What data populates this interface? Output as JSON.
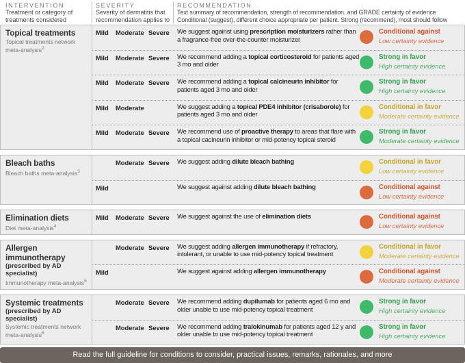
{
  "header": {
    "intervention": {
      "title": "INTERVENTION",
      "subtitle": "Treatment or category of treatments considered"
    },
    "severity": {
      "title": "SEVERITY",
      "subtitle": "Severity of dermatitis that recommendation applies to"
    },
    "recommendation": {
      "title": "RECOMMENDATION",
      "subtitle": "Text summary of recommendation, strength of recommendation, and GRADE certainty of evidence Conditional (suggest), different choice appropriate per patient. Strong (recommend), most should follow action."
    }
  },
  "groups": [
    {
      "name": "Topical treatments",
      "source": "Topical treatments network meta-analysis",
      "ref": "2",
      "rows": [
        {
          "severity": {
            "mild": "Mild",
            "moderate": "Moderate",
            "severe": "Severe"
          },
          "text": [
            "We suggest against using ",
            "prescription moisturizers",
            " rather than a fragrance-free over-the-counter moisturizer"
          ],
          "strength": "Conditional against",
          "certainty": "Low certainty evidence",
          "color": "#dc6b3e",
          "label_color": "#d4532b"
        },
        {
          "severity": {
            "mild": "Mild",
            "moderate": "Moderate",
            "severe": "Severe"
          },
          "text": [
            "We recommend adding a ",
            "topical corticosteroid",
            " for patients aged 3 mo and older"
          ],
          "strength": "Strong in favor",
          "certainty": "High certainty evidence",
          "color": "#3dba6a",
          "label_color": "#2f9f4c"
        },
        {
          "severity": {
            "mild": "Mild",
            "moderate": "Moderate",
            "severe": "Severe"
          },
          "text": [
            "We recommend adding a ",
            "topical calcineurin inhibitor",
            " for patients aged 3 mo and older"
          ],
          "strength": "Strong in favor",
          "certainty": "High certainty evidence",
          "color": "#3dba6a",
          "label_color": "#2f9f4c"
        },
        {
          "severity": {
            "mild": "Mild",
            "moderate": "Moderate"
          },
          "text": [
            "We suggest adding a ",
            "topical PDE4 inhibitor (crisaborole)",
            " for patients aged 3 mo and older"
          ],
          "strength": "Conditional in favor",
          "certainty": "Moderate certainty evidence",
          "color": "#f2d33c",
          "label_color": "#c6a22a"
        },
        {
          "severity": {
            "mild": "Mild",
            "moderate": "Moderate",
            "severe": "Severe"
          },
          "text": [
            "We recommend use of ",
            "proactive therapy",
            " to areas that flare with a topical cacineurin inhibitor or mid-potency topical steroid"
          ],
          "strength": "Strong in favor",
          "certainty": "Moderate certainty evidence",
          "color": "#3dba6a",
          "label_color": "#2f9f4c"
        }
      ]
    },
    {
      "name": "Bleach baths",
      "source": "Bleach baths meta-analysis",
      "ref": "3",
      "rows": [
        {
          "severity": {
            "moderate": "Moderate",
            "severe": "Severe"
          },
          "text": [
            "We suggest adding ",
            "dilute bleach bathing"
          ],
          "strength": "Conditional in favor",
          "certainty": "Low certainty evidence",
          "color": "#f2d33c",
          "label_color": "#c6a22a"
        },
        {
          "severity": {
            "mild": "Mild"
          },
          "text": [
            "We suggest against adding ",
            "dilute bleach bathing"
          ],
          "strength": "Conditional against",
          "certainty": "Low certainty evidence",
          "color": "#dc6b3e",
          "label_color": "#d4532b"
        }
      ]
    },
    {
      "name": "Elimination diets",
      "source": "Diet meta-analysis",
      "ref": "4",
      "rows": [
        {
          "severity": {
            "mild": "Mild",
            "moderate": "Moderate",
            "severe": "Severe"
          },
          "text": [
            "We suggest against the use of ",
            "elimination diets"
          ],
          "strength": "Conditional against",
          "certainty": "Low certainty evidence",
          "color": "#dc6b3e",
          "label_color": "#d4532b"
        }
      ]
    },
    {
      "name": "Allergen immunotherapy",
      "qualifier": "(prescribed by AD specialist)",
      "source": "Immunotherapy meta-analysis",
      "ref": "5",
      "rows": [
        {
          "severity": {
            "moderate": "Moderate",
            "severe": "Severe"
          },
          "text": [
            "We suggest adding ",
            "allergen immunotherapy",
            " if refractory, intolerant, or unable to use mid-potency topical treatment"
          ],
          "strength": "Conditional in favor",
          "certainty": "Moderate certainty evidence",
          "color": "#f2d33c",
          "label_color": "#c6a22a"
        },
        {
          "severity": {
            "mild": "Mild"
          },
          "text": [
            "We suggest against adding ",
            "allergen immunotherapy"
          ],
          "strength": "Conditional against",
          "certainty": "Moderate certainty evidence",
          "color": "#dc6b3e",
          "label_color": "#d4532b"
        }
      ]
    },
    {
      "name": "Systemic treatments",
      "qualifier": "(prescribed by AD specialist)",
      "source": "Systemic treatments network meta-analysis",
      "ref": "6",
      "rows": [
        {
          "severity": {
            "moderate": "Moderate",
            "severe": "Severe"
          },
          "text": [
            "We recommend adding ",
            "dupilumab",
            " for patients aged 6 mo and older unable to use mid-potency topical treatment"
          ],
          "strength": "Strong in favor",
          "certainty": "High certainty evidence",
          "color": "#3dba6a",
          "label_color": "#2f9f4c"
        },
        {
          "severity": {
            "moderate": "Moderate",
            "severe": "Severe"
          },
          "text": [
            "We recommend adding ",
            "tralokinumab",
            " for patients aged 12 y and older unable to use mid-potency topical treatment"
          ],
          "strength": "Strong in favor",
          "certainty": "High certainty evidence",
          "color": "#3dba6a",
          "label_color": "#2f9f4c"
        }
      ]
    }
  ],
  "footer": "Read the full guideline for conditions to consider, practical issues, remarks, rationales, and more"
}
